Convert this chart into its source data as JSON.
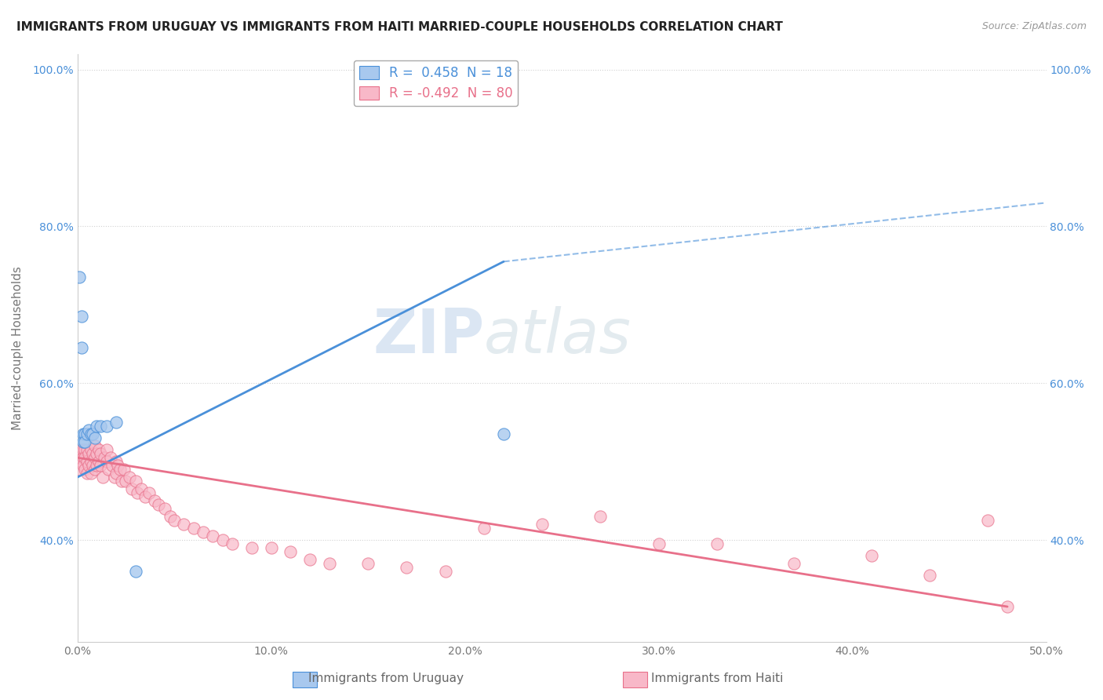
{
  "title": "IMMIGRANTS FROM URUGUAY VS IMMIGRANTS FROM HAITI MARRIED-COUPLE HOUSEHOLDS CORRELATION CHART",
  "source": "Source: ZipAtlas.com",
  "xlabel_uruguay": "Immigrants from Uruguay",
  "xlabel_haiti": "Immigrants from Haiti",
  "ylabel": "Married-couple Households",
  "watermark_zip": "ZIP",
  "watermark_atlas": "atlas",
  "legend_uruguay_R": "0.458",
  "legend_uruguay_N": "18",
  "legend_haiti_R": "-0.492",
  "legend_haiti_N": "80",
  "xmin": 0.0,
  "xmax": 0.5,
  "ymin": 0.27,
  "ymax": 1.02,
  "yticks": [
    0.4,
    0.6,
    0.8,
    1.0
  ],
  "xticks": [
    0.0,
    0.1,
    0.2,
    0.3,
    0.4,
    0.5
  ],
  "color_uruguay": "#A8C8EE",
  "color_haiti": "#F8B8C8",
  "line_color_uruguay": "#4A90D9",
  "line_color_haiti": "#E8708A",
  "background_color": "#FFFFFF",
  "grid_color": "#CCCCCC",
  "uruguay_x": [
    0.001,
    0.002,
    0.002,
    0.003,
    0.003,
    0.004,
    0.004,
    0.005,
    0.006,
    0.007,
    0.008,
    0.009,
    0.01,
    0.012,
    0.015,
    0.02,
    0.22,
    0.03
  ],
  "uruguay_y": [
    0.735,
    0.685,
    0.645,
    0.535,
    0.525,
    0.535,
    0.525,
    0.535,
    0.54,
    0.535,
    0.535,
    0.53,
    0.545,
    0.545,
    0.545,
    0.55,
    0.535,
    0.36
  ],
  "haiti_x": [
    0.001,
    0.001,
    0.002,
    0.002,
    0.003,
    0.003,
    0.003,
    0.004,
    0.004,
    0.004,
    0.005,
    0.005,
    0.005,
    0.006,
    0.006,
    0.007,
    0.007,
    0.007,
    0.008,
    0.008,
    0.009,
    0.009,
    0.009,
    0.01,
    0.01,
    0.011,
    0.011,
    0.012,
    0.012,
    0.013,
    0.014,
    0.015,
    0.015,
    0.016,
    0.017,
    0.018,
    0.019,
    0.02,
    0.02,
    0.021,
    0.022,
    0.023,
    0.024,
    0.025,
    0.027,
    0.028,
    0.03,
    0.031,
    0.033,
    0.035,
    0.037,
    0.04,
    0.042,
    0.045,
    0.048,
    0.05,
    0.055,
    0.06,
    0.065,
    0.07,
    0.075,
    0.08,
    0.09,
    0.1,
    0.11,
    0.12,
    0.13,
    0.15,
    0.17,
    0.19,
    0.21,
    0.24,
    0.27,
    0.3,
    0.33,
    0.37,
    0.41,
    0.44,
    0.47,
    0.48
  ],
  "haiti_y": [
    0.505,
    0.49,
    0.515,
    0.5,
    0.515,
    0.505,
    0.495,
    0.515,
    0.505,
    0.49,
    0.515,
    0.5,
    0.485,
    0.51,
    0.495,
    0.515,
    0.5,
    0.485,
    0.51,
    0.495,
    0.52,
    0.505,
    0.49,
    0.51,
    0.495,
    0.515,
    0.5,
    0.51,
    0.495,
    0.48,
    0.505,
    0.515,
    0.5,
    0.49,
    0.505,
    0.495,
    0.48,
    0.5,
    0.485,
    0.495,
    0.49,
    0.475,
    0.49,
    0.475,
    0.48,
    0.465,
    0.475,
    0.46,
    0.465,
    0.455,
    0.46,
    0.45,
    0.445,
    0.44,
    0.43,
    0.425,
    0.42,
    0.415,
    0.41,
    0.405,
    0.4,
    0.395,
    0.39,
    0.39,
    0.385,
    0.375,
    0.37,
    0.37,
    0.365,
    0.36,
    0.415,
    0.42,
    0.43,
    0.395,
    0.395,
    0.37,
    0.38,
    0.355,
    0.425,
    0.315
  ]
}
